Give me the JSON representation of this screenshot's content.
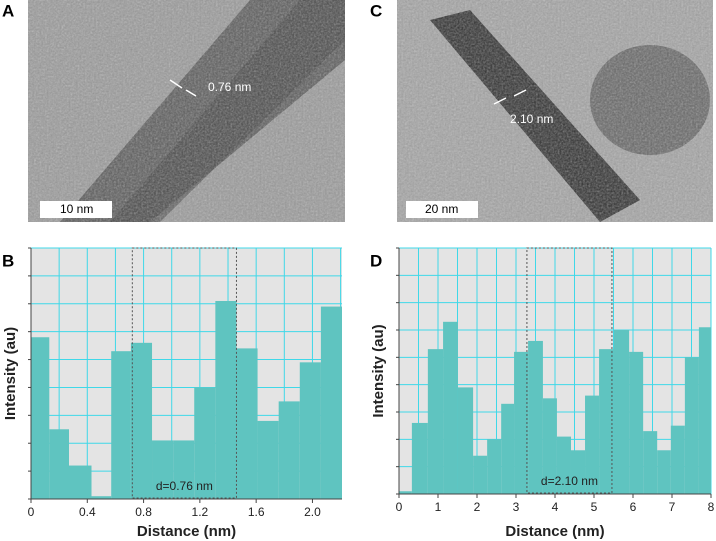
{
  "images": [
    {
      "panel": "A",
      "annotation": "0.76 nm",
      "scale_bar": "10 nm"
    },
    {
      "panel": "C",
      "annotation": "2.10 nm",
      "scale_bar": "20 nm"
    }
  ],
  "chart_data": [
    {
      "type": "histogram",
      "panel": "B",
      "x_label": "Distance (nm)",
      "y_label": "Intensity (au)",
      "bins": [
        0,
        0.13,
        0.27,
        0.43,
        0.57,
        0.71,
        0.86,
        1.01,
        1.16,
        1.31,
        1.46,
        1.61,
        1.76,
        1.91,
        2.06,
        2.21
      ],
      "values": [
        5.8,
        2.5,
        1.2,
        0.1,
        5.3,
        5.6,
        2.1,
        2.1,
        4.0,
        7.1,
        5.4,
        2.8,
        3.5,
        4.9,
        6.9
      ],
      "color": "#5fc4c0",
      "xlim": [
        0,
        2.21
      ],
      "ylim": [
        0,
        9
      ],
      "xticks": [
        0,
        0.4,
        0.8,
        1.2,
        1.6,
        {
          "value": 2,
          "label": "2.0"
        }
      ],
      "xminor": [
        0.2,
        0.6,
        1,
        1.4,
        1.8,
        2.2
      ],
      "yticks": [
        0,
        1,
        2,
        3,
        4,
        5,
        6,
        7,
        8,
        9
      ],
      "show_ytick_labels": false,
      "grid": true,
      "highlight": [
        0.72,
        1.46
      ],
      "annotation": "d=0.76 nm"
    },
    {
      "type": "histogram",
      "panel": "D",
      "x_label": "Distance (nm)",
      "y_label": "Intensity (au)",
      "bins": [
        0,
        0.33,
        0.74,
        1.13,
        1.51,
        1.9,
        2.26,
        2.62,
        2.95,
        3.31,
        3.69,
        4.05,
        4.41,
        4.77,
        5.13,
        5.51,
        5.9,
        6.26,
        6.62,
        6.97,
        7.33,
        7.69,
        8
      ],
      "values": [
        0.1,
        2.6,
        5.3,
        6.3,
        3.9,
        1.4,
        2.0,
        3.3,
        5.2,
        5.6,
        3.5,
        2.1,
        1.6,
        3.6,
        5.3,
        6.0,
        5.2,
        2.3,
        1.6,
        2.5,
        5.0,
        6.1
      ],
      "color": "#5fc4c0",
      "xlim": [
        0,
        8
      ],
      "ylim": [
        0,
        9
      ],
      "xticks": [
        0,
        1,
        2,
        3,
        4,
        5,
        6,
        7,
        8
      ],
      "xminor": [
        0.5,
        1.5,
        2.5,
        3.5,
        4.5,
        5.5,
        6.5,
        7.5
      ],
      "yticks": [
        0,
        1,
        2,
        3,
        4,
        5,
        6,
        7,
        8,
        9
      ],
      "show_ytick_labels": false,
      "grid": true,
      "highlight": [
        3.28,
        5.46
      ],
      "annotation": "d=2.10 nm"
    }
  ]
}
